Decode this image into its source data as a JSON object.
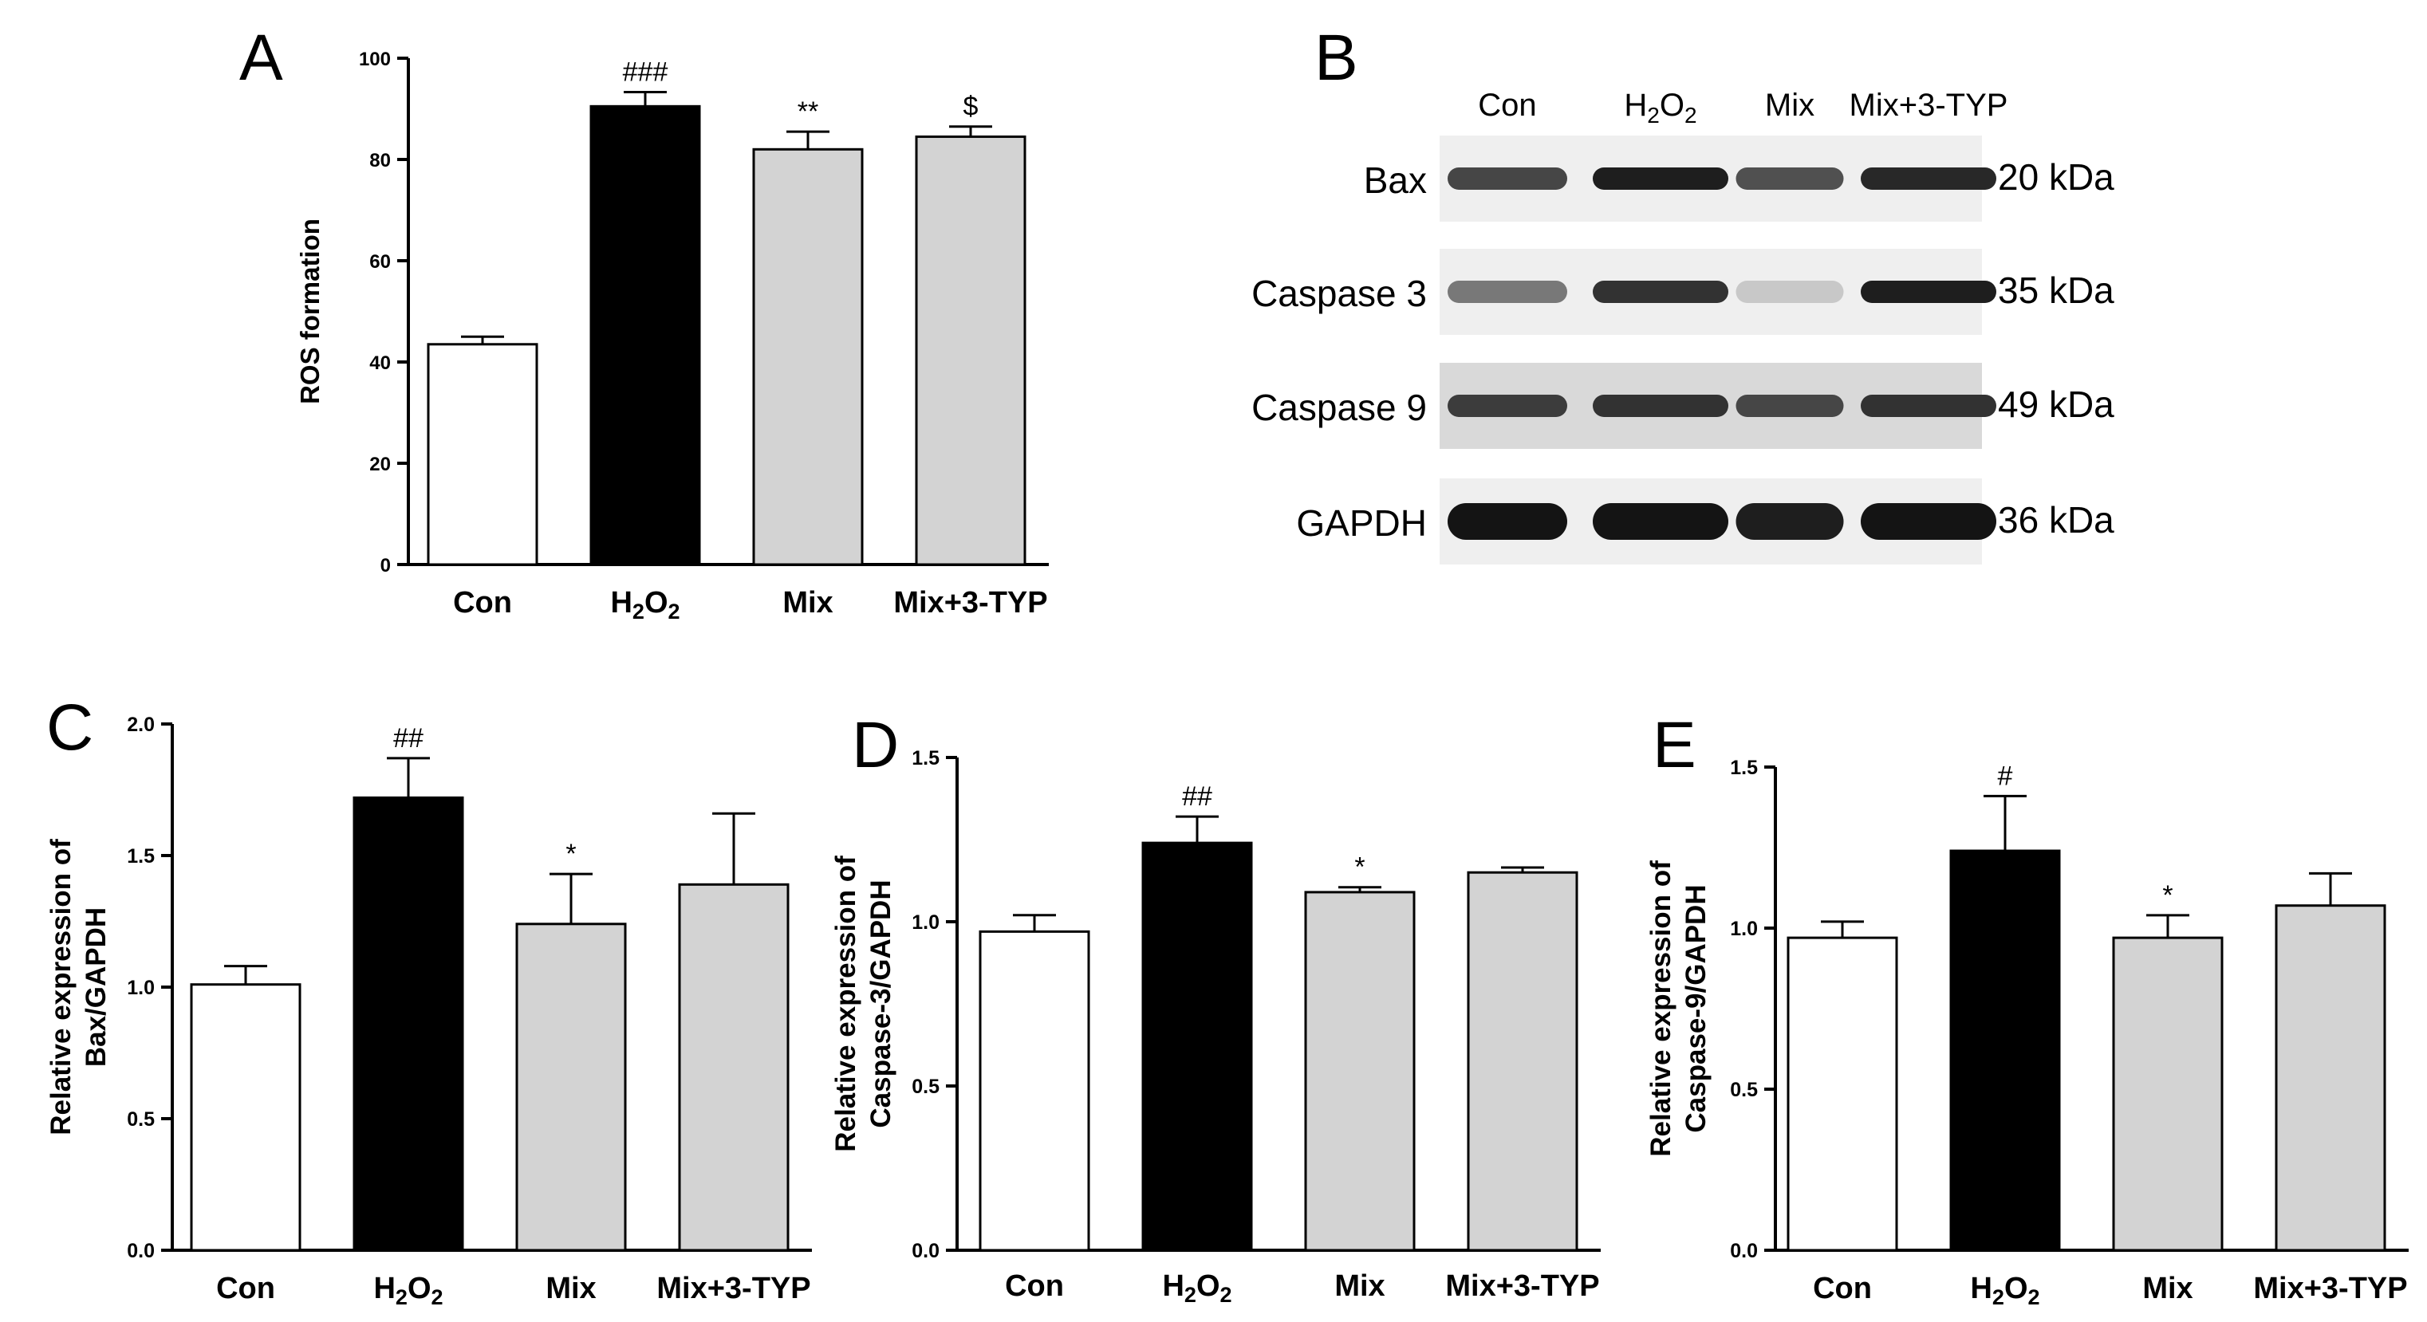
{
  "panel_letters": [
    "A",
    "B",
    "C",
    "D",
    "E"
  ],
  "colors": {
    "con": "#ffffff",
    "h2o2": "#000000",
    "mix": "#d3d3d3",
    "axis": "#000000"
  },
  "chart_data": [
    {
      "panel": "A",
      "type": "bar",
      "title": "",
      "xlabel": "",
      "ylabel": "ROS formation",
      "ylim": [
        0,
        100
      ],
      "yticks": [
        "0",
        "20",
        "40",
        "60",
        "80",
        "100"
      ],
      "categories": [
        "Con",
        "H2O2",
        "Mix",
        "Mix+3-TYP"
      ],
      "values": [
        43.5,
        90.5,
        82,
        84.5
      ],
      "errors": [
        1.5,
        2.8,
        3.5,
        2.0
      ],
      "annotations": [
        "",
        "###",
        "**",
        "$"
      ]
    },
    {
      "panel": "C",
      "type": "bar",
      "title": "",
      "xlabel": "",
      "ylabel_lines": [
        "Relative expression of",
        "Bax/GAPDH"
      ],
      "ylim": [
        0,
        2.0
      ],
      "yticks": [
        "0.0",
        "0.5",
        "1.0",
        "1.5",
        "2.0"
      ],
      "categories": [
        "Con",
        "H2O2",
        "Mix",
        "Mix+3-TYP"
      ],
      "values": [
        1.01,
        1.72,
        1.24,
        1.39
      ],
      "errors": [
        0.07,
        0.15,
        0.19,
        0.27
      ],
      "annotations": [
        "",
        "##",
        "*",
        ""
      ]
    },
    {
      "panel": "D",
      "type": "bar",
      "title": "",
      "xlabel": "",
      "ylabel_lines": [
        "Relative expression of",
        "Caspase-3/GAPDH"
      ],
      "ylim": [
        0,
        1.5
      ],
      "yticks": [
        "0.0",
        "0.5",
        "1.0",
        "1.5"
      ],
      "categories": [
        "Con",
        "H2O2",
        "Mix",
        "Mix+3-TYP"
      ],
      "values": [
        0.97,
        1.24,
        1.09,
        1.15
      ],
      "errors": [
        0.05,
        0.08,
        0.015,
        0.015
      ],
      "annotations": [
        "",
        "##",
        "*",
        ""
      ]
    },
    {
      "panel": "E",
      "type": "bar",
      "title": "",
      "xlabel": "",
      "ylabel_lines": [
        "Relative expression of",
        "Caspase-9/GAPDH"
      ],
      "ylim": [
        0,
        1.5
      ],
      "yticks": [
        "0.0",
        "0.5",
        "1.0",
        "1.5"
      ],
      "categories": [
        "Con",
        "H2O2",
        "Mix",
        "Mix+3-TYP"
      ],
      "values": [
        0.97,
        1.24,
        0.97,
        1.07
      ],
      "errors": [
        0.05,
        0.17,
        0.07,
        0.1
      ],
      "annotations": [
        "",
        "#",
        "*",
        ""
      ]
    }
  ],
  "blot": {
    "panel": "B",
    "lanes": [
      "Con",
      "H2O2",
      "Mix",
      "Mix+3-TYP"
    ],
    "rows": [
      {
        "protein": "Bax",
        "kda": "20 kDa",
        "intensity": [
          0.75,
          0.95,
          0.7,
          0.9
        ]
      },
      {
        "protein": "Caspase 3",
        "kda": "35 kDa",
        "intensity": [
          0.5,
          0.85,
          0.1,
          0.95
        ]
      },
      {
        "protein": "Caspase 9",
        "kda": "49 kDa",
        "intensity": [
          0.8,
          0.85,
          0.75,
          0.85
        ]
      },
      {
        "protein": "GAPDH",
        "kda": "36 kDa",
        "intensity": [
          1.0,
          1.0,
          0.95,
          1.0
        ]
      }
    ]
  }
}
